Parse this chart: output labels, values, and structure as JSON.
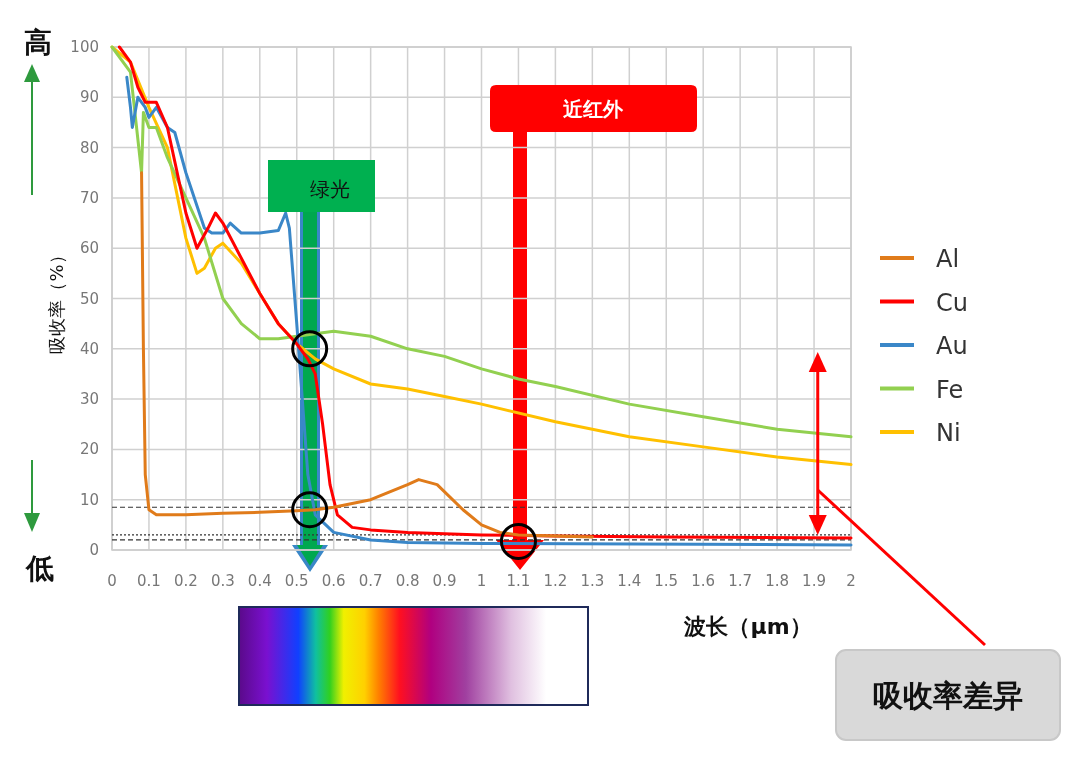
{
  "chart_data": {
    "type": "line",
    "xlabel": "波长（μm）",
    "ylabel": "吸收率（%）",
    "xlim": [
      0,
      2
    ],
    "ylim": [
      0,
      100
    ],
    "xticks": [
      0,
      0.1,
      0.2,
      0.3,
      0.4,
      0.5,
      0.6,
      0.7,
      0.8,
      0.9,
      1,
      1.1,
      1.2,
      1.3,
      1.4,
      1.5,
      1.6,
      1.7,
      1.8,
      1.9,
      2
    ],
    "yticks": [
      0,
      10,
      20,
      30,
      40,
      50,
      60,
      70,
      80,
      90,
      100
    ],
    "grid": true,
    "legend": "right",
    "marker": "none",
    "line_style": "solid",
    "series": [
      {
        "name": "Al",
        "color": "#e07b1a",
        "x": [
          0.08,
          0.085,
          0.09,
          0.1,
          0.12,
          0.2,
          0.3,
          0.4,
          0.5,
          0.55,
          0.6,
          0.7,
          0.8,
          0.83,
          0.88,
          0.95,
          1.0,
          1.05,
          1.1,
          1.2,
          1.3
        ],
        "values": [
          75,
          40,
          15,
          8,
          7,
          7,
          7.3,
          7.5,
          7.8,
          8,
          8.5,
          10,
          13,
          14,
          13,
          8,
          5,
          3.5,
          3,
          2.8,
          2.6
        ]
      },
      {
        "name": "Cu",
        "color": "#ff0000",
        "x": [
          0.02,
          0.05,
          0.07,
          0.09,
          0.12,
          0.15,
          0.2,
          0.23,
          0.26,
          0.28,
          0.3,
          0.35,
          0.4,
          0.45,
          0.5,
          0.53,
          0.55,
          0.57,
          0.59,
          0.61,
          0.65,
          0.7,
          0.8,
          1.0,
          1.2,
          1.5,
          2.0
        ],
        "values": [
          100,
          97,
          92,
          89,
          89,
          84,
          67,
          60,
          64,
          67,
          65,
          58,
          51,
          45,
          41,
          38,
          35,
          25,
          13,
          7,
          4.5,
          4,
          3.5,
          3,
          2.8,
          2.6,
          2.4
        ]
      },
      {
        "name": "Au",
        "color": "#3a87c8",
        "x": [
          0.04,
          0.05,
          0.055,
          0.07,
          0.09,
          0.1,
          0.12,
          0.15,
          0.17,
          0.2,
          0.25,
          0.27,
          0.3,
          0.32,
          0.35,
          0.4,
          0.45,
          0.47,
          0.48,
          0.5,
          0.52,
          0.53,
          0.55,
          0.6,
          0.7,
          0.8,
          1.0,
          2.0
        ],
        "values": [
          94,
          88,
          84,
          90,
          88,
          86,
          88,
          84,
          83,
          75,
          64,
          63,
          63,
          65,
          63,
          63,
          63.5,
          67,
          64,
          45,
          25,
          15,
          7,
          3.5,
          2,
          1.5,
          1.3,
          1.0
        ]
      },
      {
        "name": "Fe",
        "color": "#92d050",
        "x": [
          0.0,
          0.05,
          0.08,
          0.085,
          0.1,
          0.12,
          0.15,
          0.2,
          0.25,
          0.3,
          0.35,
          0.4,
          0.45,
          0.5,
          0.6,
          0.7,
          0.8,
          0.9,
          1.0,
          1.1,
          1.2,
          1.4,
          1.6,
          1.8,
          2.0
        ],
        "values": [
          100,
          95,
          75,
          87,
          84,
          84,
          78,
          70,
          62,
          50,
          45,
          42,
          42,
          42.5,
          43.5,
          42.5,
          40,
          38.5,
          36,
          34,
          32.5,
          29,
          26.5,
          24,
          22.5
        ]
      },
      {
        "name": "Ni",
        "color": "#ffc000",
        "x": [
          0.0,
          0.05,
          0.1,
          0.15,
          0.2,
          0.23,
          0.25,
          0.28,
          0.3,
          0.35,
          0.4,
          0.45,
          0.5,
          0.55,
          0.6,
          0.7,
          0.8,
          0.9,
          1.0,
          1.2,
          1.4,
          1.6,
          1.8,
          2.0
        ],
        "values": [
          100,
          97,
          88,
          80,
          62,
          55,
          56,
          60,
          61,
          57,
          51,
          45,
          41,
          38,
          36,
          33,
          32,
          30.5,
          29,
          25.5,
          22.5,
          20.5,
          18.5,
          17
        ]
      }
    ],
    "ref_lines": [
      {
        "axis": "y",
        "value": 8.5,
        "color": "#333333",
        "line_style": "dashed"
      },
      {
        "axis": "y",
        "value": 2,
        "color": "#333333",
        "line_style": "dashed"
      },
      {
        "axis": "y",
        "value": 3,
        "color": "#333333",
        "line_style": "dotted"
      }
    ],
    "annotations": [
      "高",
      "低",
      "绿光",
      "近红外",
      "吸收率差异"
    ]
  }
}
